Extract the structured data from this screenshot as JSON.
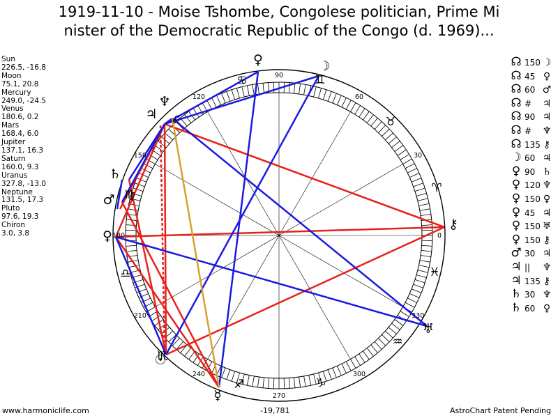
{
  "title_line1": "1919-11-10 - Moise Tshombe, Congolese politician, Prime Mi",
  "title_line2": "nister of the Democratic Republic of the Congo (d. 1969)...",
  "planets": [
    {
      "name": "Sun",
      "coords": "226.5, -16.8"
    },
    {
      "name": "Moon",
      "coords": "75.1, 20.8"
    },
    {
      "name": "Mercury",
      "coords": "249.0, -24.5"
    },
    {
      "name": "Venus",
      "coords": "180.6, 0.2"
    },
    {
      "name": "Mars",
      "coords": "168.4, 6.0"
    },
    {
      "name": "Jupiter",
      "coords": "137.1, 16.3"
    },
    {
      "name": "Saturn",
      "coords": "160.0, 9.3"
    },
    {
      "name": "Uranus",
      "coords": "327.8, -13.0"
    },
    {
      "name": "Neptune",
      "coords": "131.5, 17.3"
    },
    {
      "name": "Pluto",
      "coords": "97.6, 19.3"
    },
    {
      "name": "Chiron",
      "coords": "3.0, 3.8"
    }
  ],
  "aspects": [
    {
      "p1": "☊",
      "angle": "150",
      "p2": "☽"
    },
    {
      "p1": "☊",
      "angle": "45",
      "p2": "♀"
    },
    {
      "p1": "☊",
      "angle": "60",
      "p2": "♂"
    },
    {
      "p1": "☊",
      "angle": "#",
      "p2": "♃"
    },
    {
      "p1": "☊",
      "angle": "90",
      "p2": "♃"
    },
    {
      "p1": "☊",
      "angle": "#",
      "p2": "♆"
    },
    {
      "p1": "☊",
      "angle": "135",
      "p2": "⚷"
    },
    {
      "p1": "☽",
      "angle": "60",
      "p2": "♃"
    },
    {
      "p1": "♀",
      "angle": "90",
      "p2": "♄"
    },
    {
      "p1": "♀",
      "angle": "120",
      "p2": "♆"
    },
    {
      "p1": "♀",
      "angle": "150",
      "p2": "♀"
    },
    {
      "p1": "♀",
      "angle": "45",
      "p2": "♃"
    },
    {
      "p1": "♀",
      "angle": "150",
      "p2": "♅"
    },
    {
      "p1": "♀",
      "angle": "150",
      "p2": "⚷"
    },
    {
      "p1": "♂",
      "angle": "30",
      "p2": "♃"
    },
    {
      "p1": "♃",
      "angle": "||",
      "p2": "♆"
    },
    {
      "p1": "♃",
      "angle": "135",
      "p2": "⚷"
    },
    {
      "p1": "♄",
      "angle": "30",
      "p2": "♆"
    },
    {
      "p1": "♄",
      "angle": "60",
      "p2": "♀"
    }
  ],
  "degree_labels": [
    "0",
    "30",
    "60",
    "90",
    "120",
    "150",
    "180",
    "210",
    "240",
    "270",
    "300",
    "330"
  ],
  "chart_center_value": "-19,781",
  "footer": {
    "website": "www.harmoniclife.com",
    "patent": "AstroChart Patent Pending"
  },
  "glyphs": {
    "sun": "☉",
    "moon": "☽",
    "mercury": "☿",
    "venus": "♀",
    "mars": "♂",
    "jupiter": "♃",
    "saturn": "♄",
    "uranus": "♅",
    "neptune": "♆",
    "pluto": "♇",
    "chiron": "⚷"
  },
  "colors": {
    "red": "#e8211a",
    "blue": "#1a1ae0",
    "gold": "#d9a030",
    "ring": "#000000"
  }
}
